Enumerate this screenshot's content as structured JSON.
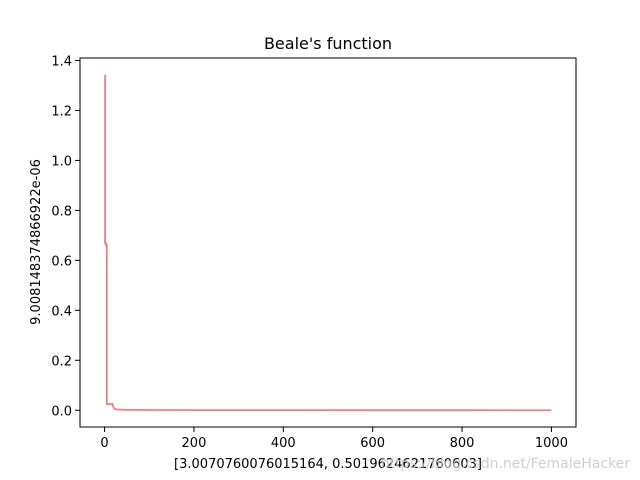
{
  "chart_data": {
    "type": "line",
    "title": "Beale's function",
    "xlabel": "[3.0070760076015164, 0.5019624621760603]",
    "ylabel": "9.008148374866922e-06",
    "xlim": [
      -55,
      1055
    ],
    "ylim": [
      -0.067,
      1.41
    ],
    "grid": false,
    "legend": "none",
    "x_ticks": [
      0,
      200,
      400,
      600,
      800,
      1000
    ],
    "y_ticks": [
      0.0,
      0.2,
      0.4,
      0.6,
      0.8,
      1.0,
      1.2,
      1.4
    ],
    "x_tick_labels": [
      "0",
      "200",
      "400",
      "600",
      "800",
      "1000"
    ],
    "y_tick_labels": [
      "0.0",
      "0.2",
      "0.4",
      "0.6",
      "0.8",
      "1.0",
      "1.2",
      "1.4"
    ],
    "series": [
      {
        "color": "#f08080",
        "x": [
          0,
          1,
          1,
          3,
          3,
          5,
          5,
          18,
          18,
          20,
          22,
          25,
          30,
          40,
          60,
          100,
          200,
          400,
          600,
          800,
          1000
        ],
        "y": [
          1.34,
          1.34,
          0.67,
          0.67,
          0.66,
          0.66,
          0.025,
          0.025,
          0.02,
          0.012,
          0.006,
          0.004,
          0.003,
          0.002,
          0.0015,
          0.001,
          0.0006,
          0.0004,
          0.0003,
          0.0002,
          0.0001
        ]
      }
    ]
  },
  "watermark": {
    "text": "https://blog.csdn.net/FemaleHacker"
  }
}
